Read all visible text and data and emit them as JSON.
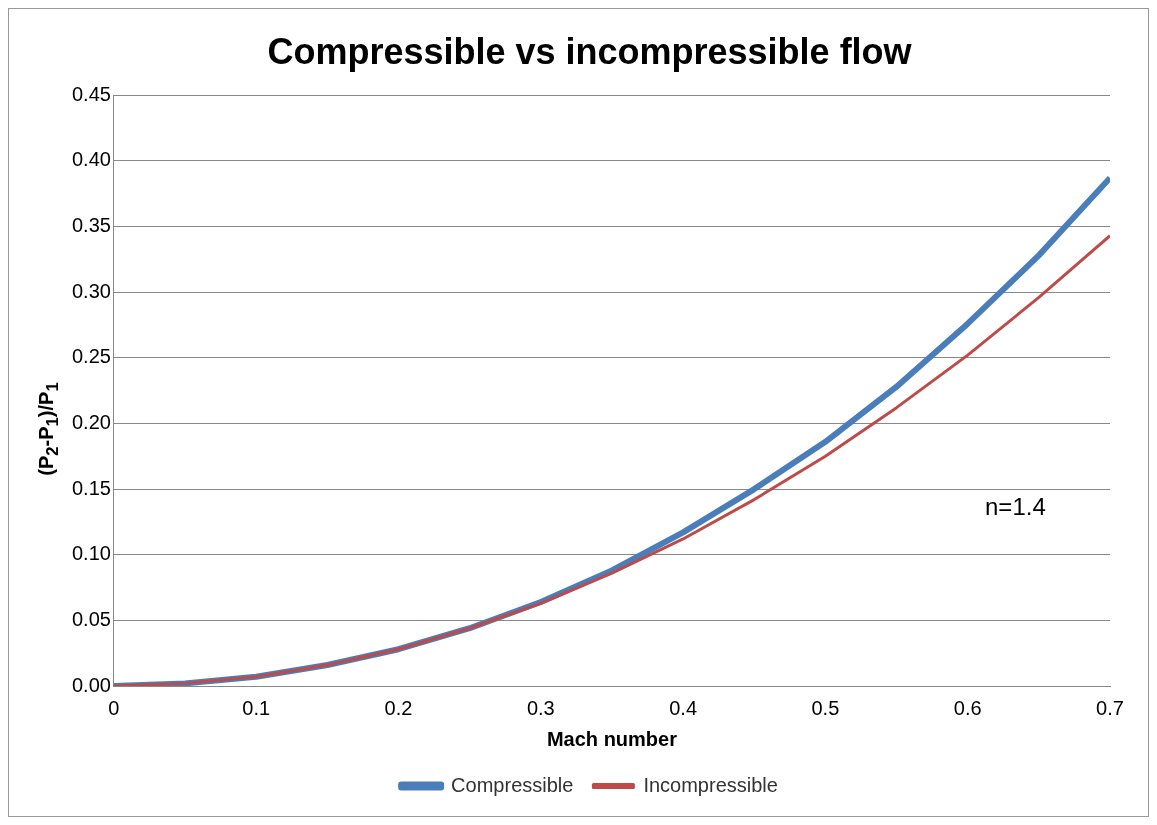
{
  "chart_data": {
    "type": "line",
    "title": "Compressible vs incompressible flow",
    "xlabel": "Mach number",
    "ylabel": "(P$_{2}$-P$_{1}$)/P$_{1}$",
    "x": [
      0,
      0.05,
      0.1,
      0.15,
      0.2,
      0.25,
      0.3,
      0.35,
      0.4,
      0.45,
      0.5,
      0.55,
      0.6,
      0.65,
      0.7
    ],
    "series": [
      {
        "name": "Compressible",
        "color": "#4a7ebb",
        "values": [
          0,
          0.002,
          0.007,
          0.016,
          0.028,
          0.044,
          0.064,
          0.088,
          0.117,
          0.15,
          0.186,
          0.228,
          0.276,
          0.328,
          0.387
        ]
      },
      {
        "name": "Incompressible",
        "color": "#be4b48",
        "values": [
          0,
          0.002,
          0.007,
          0.016,
          0.028,
          0.044,
          0.063,
          0.086,
          0.112,
          0.142,
          0.175,
          0.212,
          0.252,
          0.296,
          0.343
        ]
      }
    ],
    "xlim": [
      0,
      0.7
    ],
    "xticks": [
      0,
      0.1,
      0.2,
      0.3,
      0.4,
      0.5,
      0.6,
      0.7
    ],
    "ylim": [
      0,
      0.45
    ],
    "yticks": [
      {
        "value": 0,
        "label": "0.00"
      },
      {
        "value": 0.05,
        "label": "0.05"
      },
      {
        "value": 0.1,
        "label": "0.10"
      },
      {
        "value": 0.15,
        "label": "0.15"
      },
      {
        "value": 0.2,
        "label": "0.20"
      },
      {
        "value": 0.25,
        "label": "0.25"
      },
      {
        "value": 0.3,
        "label": "0.30"
      },
      {
        "value": 0.35,
        "label": "0.35"
      },
      {
        "value": 0.4,
        "label": "0.40"
      },
      {
        "value": 0.45,
        "label": "0.45"
      }
    ],
    "grid": "y",
    "legend": "bottom",
    "marker": "none",
    "line_style": "solid",
    "annotations": [
      "n=1.4"
    ]
  }
}
